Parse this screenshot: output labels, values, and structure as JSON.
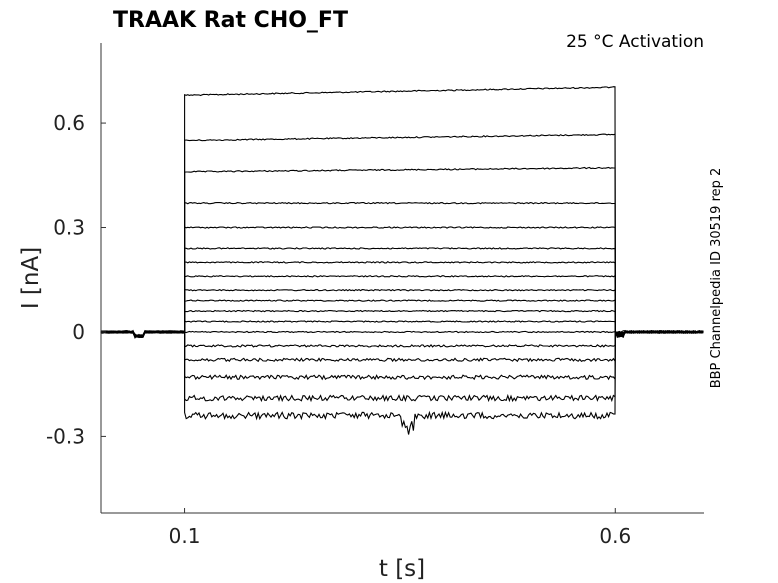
{
  "chart_data": {
    "type": "line",
    "title": "TRAAK  Rat  CHO_FT",
    "annotation": "25 °C  Activation",
    "side_note": "BBP Channelpedia ID 30519 rep 2",
    "xlabel": "t [s]",
    "ylabel": "I [nA]",
    "xlim": [
      0.003,
      0.703
    ],
    "ylim": [
      -0.52,
      0.83
    ],
    "xticks": [
      0.1,
      0.6
    ],
    "xtick_labels": [
      "0.1",
      "0.6"
    ],
    "yticks": [
      -0.3,
      0,
      0.3,
      0.6
    ],
    "ytick_labels": [
      "-0.3",
      "0",
      "0.3",
      "0.6"
    ],
    "grid": false,
    "step_on": 0.1,
    "step_off": 0.6,
    "baseline": 0.0,
    "trace_levels": [
      0.68,
      0.55,
      0.46,
      0.37,
      0.3,
      0.24,
      0.2,
      0.16,
      0.12,
      0.09,
      0.06,
      0.03,
      0.0,
      -0.04,
      -0.08,
      -0.13,
      -0.19,
      -0.24
    ],
    "line_color": "#000000"
  }
}
